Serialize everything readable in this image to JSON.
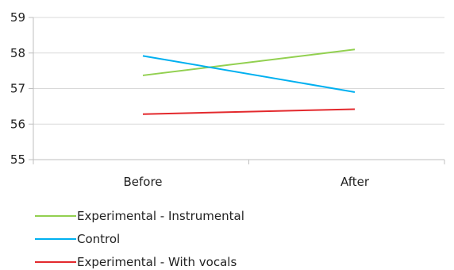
{
  "chart_data": {
    "type": "line",
    "title": "",
    "xlabel": "",
    "ylabel": "",
    "categories": [
      "Before",
      "After"
    ],
    "ylim": [
      55,
      59
    ],
    "yticks": [
      55,
      56,
      57,
      58,
      59
    ],
    "grid": true,
    "legend_position": "bottom-left",
    "series": [
      {
        "name": "Experimental - Instrumental",
        "values": [
          57.37,
          58.1
        ],
        "color": "#92d050"
      },
      {
        "name": "Control",
        "values": [
          57.92,
          56.9
        ],
        "color": "#00b0f0"
      },
      {
        "name": "Experimental - With vocals",
        "values": [
          56.28,
          56.42
        ],
        "color": "#e3292d"
      }
    ]
  }
}
